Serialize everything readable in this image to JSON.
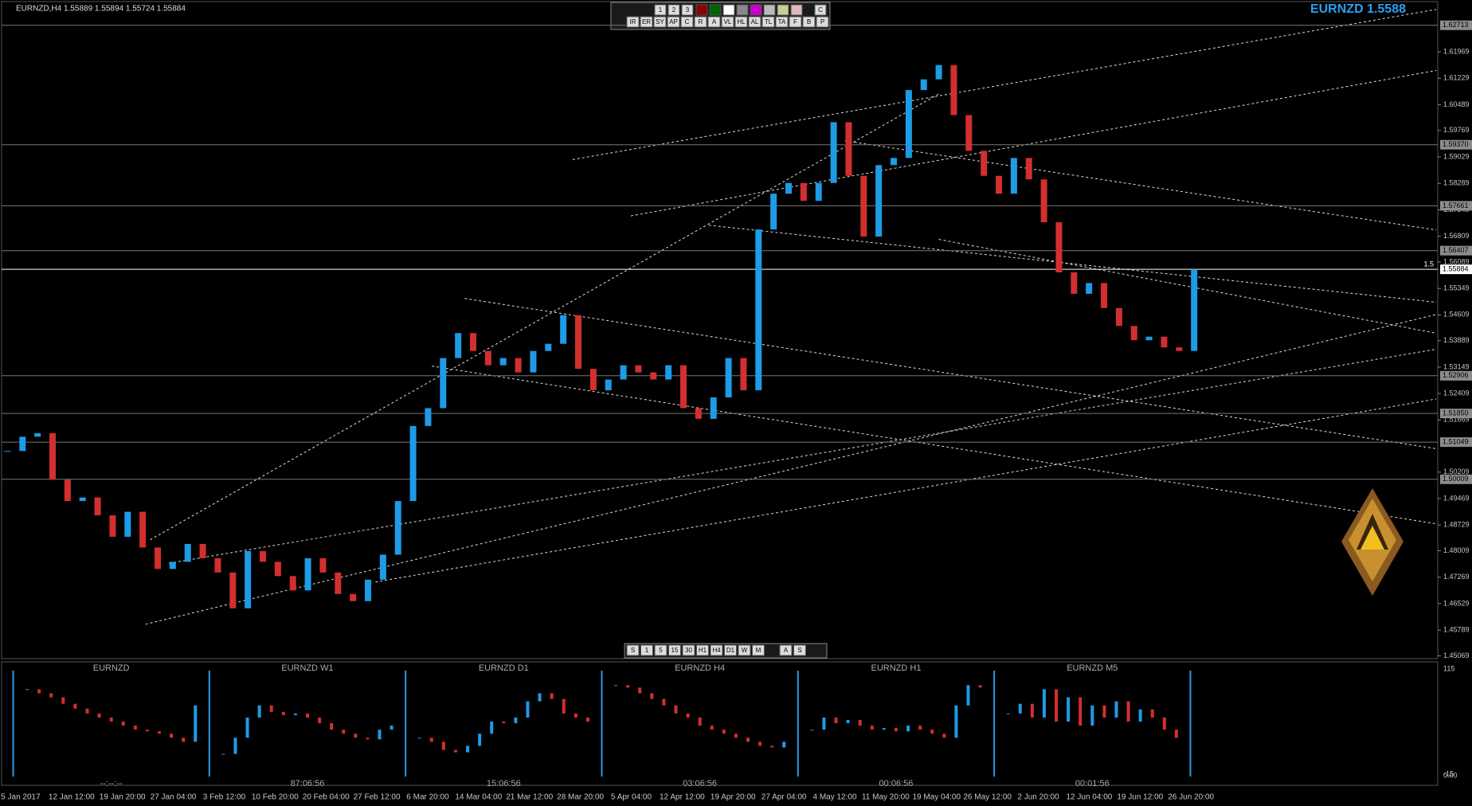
{
  "header": {
    "symbol_info": "EURNZD,H4  1.55889 1.55894 1.55724 1.55884",
    "price_banner": "EURNZD 1.5588"
  },
  "toolbar_top": {
    "row1": [
      "1",
      "2",
      "3",
      "C"
    ],
    "row2": [
      "IR",
      "ER",
      "SY",
      "AP",
      "C",
      "R",
      "A",
      "VL",
      "HL",
      "AL",
      "TL",
      "TA",
      "F",
      "B",
      "P"
    ]
  },
  "toolbar_bottom": [
    "S",
    "1",
    "5",
    "15",
    "30",
    "H1",
    "H4",
    "D1",
    "W",
    "M",
    "A",
    "S"
  ],
  "chart_data": {
    "type": "candlestick",
    "x_labels": [
      "5 Jan 2017",
      "12 Jan 12:00",
      "19 Jan 20:00",
      "27 Jan 04:00",
      "3 Feb 12:00",
      "10 Feb 20:00",
      "20 Feb 04:00",
      "27 Feb 12:00",
      "6 Mar 20:00",
      "14 Mar 04:00",
      "21 Mar 12:00",
      "28 Mar 20:00",
      "5 Apr 04:00",
      "12 Apr 12:00",
      "19 Apr 20:00",
      "27 Apr 04:00",
      "4 May 12:00",
      "11 May 20:00",
      "19 May 04:00",
      "26 May 12:00",
      "2 Jun 20:00",
      "12 Jun 04:00",
      "19 Jun 12:00",
      "26 Jun 20:00"
    ],
    "close": [
      1.508,
      1.512,
      1.513,
      1.5,
      1.494,
      1.495,
      1.49,
      1.484,
      1.491,
      1.481,
      1.475,
      1.477,
      1.482,
      1.478,
      1.474,
      1.464,
      1.48,
      1.477,
      1.473,
      1.469,
      1.478,
      1.474,
      1.468,
      1.466,
      1.472,
      1.479,
      1.494,
      1.515,
      1.52,
      1.534,
      1.541,
      1.536,
      1.532,
      1.534,
      1.53,
      1.536,
      1.538,
      1.546,
      1.531,
      1.525,
      1.528,
      1.532,
      1.53,
      1.528,
      1.532,
      1.52,
      1.517,
      1.523,
      1.534,
      1.525,
      1.57,
      1.58,
      1.583,
      1.578,
      1.583,
      1.6,
      1.585,
      1.568,
      1.588,
      1.59,
      1.609,
      1.612,
      1.616,
      1.602,
      1.592,
      1.585,
      1.58,
      1.59,
      1.584,
      1.572,
      1.558,
      1.552,
      1.555,
      1.548,
      1.543,
      1.539,
      1.54,
      1.537,
      1.536,
      1.55884
    ],
    "up_color": "#1e9be6",
    "down_color": "#d32f2f",
    "ylim": [
      1.4499,
      1.6342
    ],
    "yticks": [
      1.45069,
      1.45789,
      1.46529,
      1.47269,
      1.48009,
      1.48729,
      1.49469,
      1.50209,
      1.51669,
      1.52409,
      1.53149,
      1.53889,
      1.54609,
      1.55349,
      1.56089,
      1.56809,
      1.57549,
      1.58289,
      1.59029,
      1.59769,
      1.60489,
      1.61229,
      1.61969
    ],
    "levels": [
      1.62713,
      {
        "value": 1.5937,
        "label": "1.59370"
      },
      1.57661,
      1.56407,
      1.52906,
      {
        "value": 1.5185,
        "label": "1.51850"
      },
      1.51049,
      1.50009
    ],
    "last_price": 1.55884,
    "level_tag": "1.5"
  },
  "subwindow": {
    "ylim": [
      -15,
      115
    ],
    "yticks": [
      115,
      -15
    ],
    "zero_label": "0.00",
    "panels": [
      {
        "name": "EURNZD",
        "timer": "--:--:--",
        "values": [
          90,
          85,
          80,
          72,
          66,
          60,
          55,
          50,
          45,
          40,
          38,
          35,
          30,
          25,
          70
        ]
      },
      {
        "name": "EURNZD W1",
        "timer": "87:06:56",
        "values": [
          10,
          30,
          55,
          70,
          62,
          58,
          60,
          55,
          48,
          40,
          35,
          30,
          28,
          40,
          45
        ]
      },
      {
        "name": "EURNZD D1",
        "timer": "15:06:56",
        "values": [
          30,
          25,
          15,
          12,
          20,
          35,
          50,
          48,
          55,
          75,
          85,
          78,
          60,
          55,
          50
        ]
      },
      {
        "name": "EURNZD H4",
        "timer": "03:06:56",
        "values": [
          95,
          92,
          85,
          78,
          70,
          60,
          55,
          45,
          40,
          35,
          30,
          25,
          20,
          18,
          25
        ]
      },
      {
        "name": "EURNZD H1",
        "timer": "00:06:56",
        "values": [
          40,
          55,
          48,
          52,
          45,
          40,
          42,
          38,
          45,
          40,
          35,
          30,
          70,
          95,
          92
        ]
      },
      {
        "name": "EURNZD M5",
        "timer": "00:01:56",
        "values": [
          60,
          72,
          55,
          90,
          50,
          80,
          45,
          70,
          55,
          75,
          50,
          65,
          55,
          40,
          30
        ]
      }
    ]
  }
}
